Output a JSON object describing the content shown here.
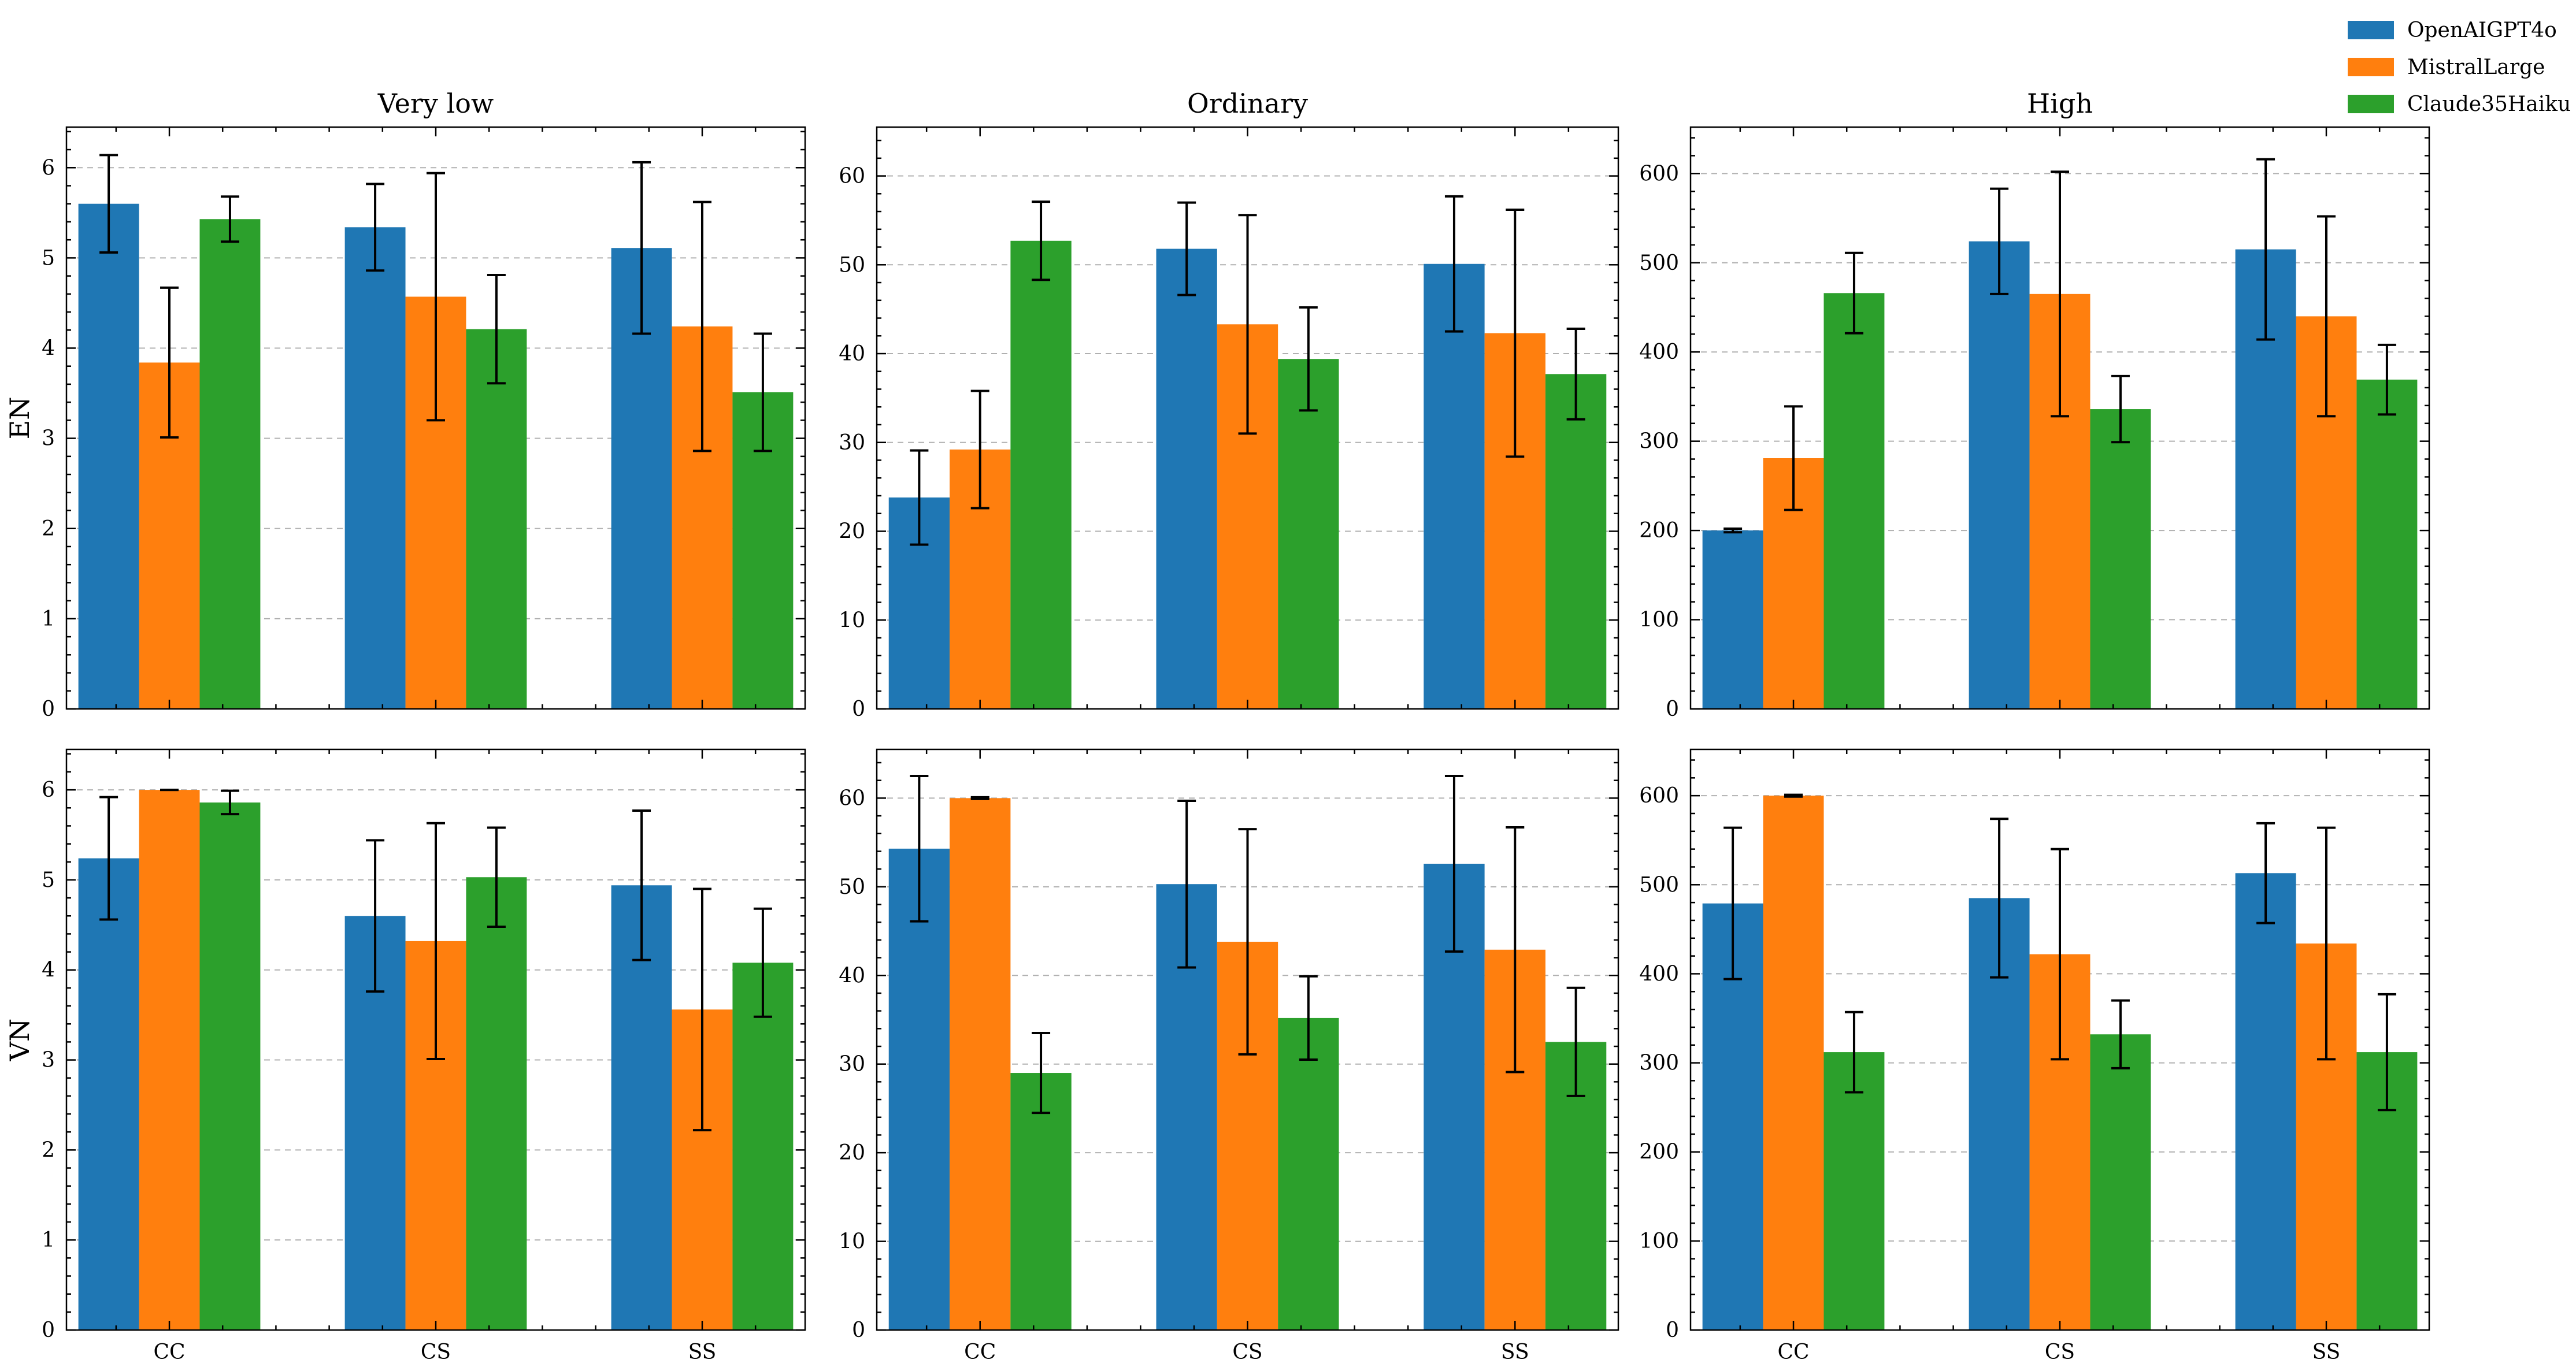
{
  "figure": {
    "column_titles": [
      "Very low",
      "Ordinary",
      "High"
    ],
    "row_labels": [
      "EN",
      "VN"
    ],
    "categories": [
      "CC",
      "CS",
      "SS"
    ],
    "legend": [
      {
        "name": "OpenAIGPT4o",
        "color": "#1f77b4"
      },
      {
        "name": "MistralLarge",
        "color": "#ff7f0e"
      },
      {
        "name": "Claude35Haiku",
        "color": "#2ca02c"
      }
    ]
  },
  "chart_data": [
    {
      "type": "bar",
      "row": "EN",
      "title": "Very low",
      "ylabel": "EN",
      "xlabel": "",
      "categories": [
        "CC",
        "CS",
        "SS"
      ],
      "ylim": [
        0,
        6.45
      ],
      "yticks": [
        0,
        1,
        2,
        3,
        4,
        5,
        6
      ],
      "grid": true,
      "error_bars": true,
      "series": [
        {
          "name": "OpenAIGPT4o",
          "values": [
            5.6,
            5.34,
            5.11
          ],
          "errors": [
            0.54,
            0.48,
            0.95
          ]
        },
        {
          "name": "MistralLarge",
          "values": [
            3.84,
            4.57,
            4.24
          ],
          "errors": [
            0.83,
            1.37,
            1.38
          ]
        },
        {
          "name": "Claude35Haiku",
          "values": [
            5.43,
            4.21,
            3.51
          ],
          "errors": [
            0.25,
            0.6,
            0.65
          ]
        }
      ]
    },
    {
      "type": "bar",
      "row": "EN",
      "title": "Ordinary",
      "ylabel": "",
      "xlabel": "",
      "categories": [
        "CC",
        "CS",
        "SS"
      ],
      "ylim": [
        0,
        65.5
      ],
      "yticks": [
        0,
        10,
        20,
        30,
        40,
        50,
        60
      ],
      "grid": true,
      "error_bars": true,
      "series": [
        {
          "name": "OpenAIGPT4o",
          "values": [
            23.8,
            51.8,
            50.1
          ],
          "errors": [
            5.3,
            5.2,
            7.6
          ]
        },
        {
          "name": "MistralLarge",
          "values": [
            29.2,
            43.3,
            42.3
          ],
          "errors": [
            6.6,
            12.3,
            13.9
          ]
        },
        {
          "name": "Claude35Haiku",
          "values": [
            52.7,
            39.4,
            37.7
          ],
          "errors": [
            4.4,
            5.8,
            5.1
          ]
        }
      ]
    },
    {
      "type": "bar",
      "row": "EN",
      "title": "High",
      "ylabel": "",
      "xlabel": "",
      "categories": [
        "CC",
        "CS",
        "SS"
      ],
      "ylim": [
        0,
        652
      ],
      "yticks": [
        0,
        100,
        200,
        300,
        400,
        500,
        600
      ],
      "grid": true,
      "error_bars": true,
      "series": [
        {
          "name": "OpenAIGPT4o",
          "values": [
            200,
            524,
            515
          ],
          "errors": [
            2,
            59,
            101
          ]
        },
        {
          "name": "MistralLarge",
          "values": [
            281,
            465,
            440
          ],
          "errors": [
            58,
            137,
            112
          ]
        },
        {
          "name": "Claude35Haiku",
          "values": [
            466,
            336,
            369
          ],
          "errors": [
            45,
            37,
            39
          ]
        }
      ]
    },
    {
      "type": "bar",
      "row": "VN",
      "title": "",
      "ylabel": "VN",
      "xlabel": "",
      "categories": [
        "CC",
        "CS",
        "SS"
      ],
      "ylim": [
        0,
        6.45
      ],
      "yticks": [
        0,
        1,
        2,
        3,
        4,
        5,
        6
      ],
      "grid": true,
      "error_bars": true,
      "series": [
        {
          "name": "OpenAIGPT4o",
          "values": [
            5.24,
            4.6,
            4.94
          ],
          "errors": [
            0.68,
            0.84,
            0.83
          ]
        },
        {
          "name": "MistralLarge",
          "values": [
            6.0,
            4.32,
            3.56
          ],
          "errors": [
            0.0,
            1.31,
            1.34
          ]
        },
        {
          "name": "Claude35Haiku",
          "values": [
            5.86,
            5.03,
            4.08
          ],
          "errors": [
            0.13,
            0.55,
            0.6
          ]
        }
      ]
    },
    {
      "type": "bar",
      "row": "VN",
      "title": "",
      "ylabel": "",
      "xlabel": "",
      "categories": [
        "CC",
        "CS",
        "SS"
      ],
      "ylim": [
        0,
        65.5
      ],
      "yticks": [
        0,
        10,
        20,
        30,
        40,
        50,
        60
      ],
      "grid": true,
      "error_bars": true,
      "series": [
        {
          "name": "OpenAIGPT4o",
          "values": [
            54.3,
            50.3,
            52.6
          ],
          "errors": [
            8.2,
            9.4,
            9.9
          ]
        },
        {
          "name": "MistralLarge",
          "values": [
            60.0,
            43.8,
            42.9
          ],
          "errors": [
            0.1,
            12.7,
            13.8
          ]
        },
        {
          "name": "Claude35Haiku",
          "values": [
            29.0,
            35.2,
            32.5
          ],
          "errors": [
            4.5,
            4.7,
            6.1
          ]
        }
      ]
    },
    {
      "type": "bar",
      "row": "VN",
      "title": "",
      "ylabel": "",
      "xlabel": "",
      "categories": [
        "CC",
        "CS",
        "SS"
      ],
      "ylim": [
        0,
        652
      ],
      "yticks": [
        0,
        100,
        200,
        300,
        400,
        500,
        600
      ],
      "grid": true,
      "error_bars": true,
      "series": [
        {
          "name": "OpenAIGPT4o",
          "values": [
            479,
            485,
            513
          ],
          "errors": [
            85,
            89,
            56
          ]
        },
        {
          "name": "MistralLarge",
          "values": [
            600,
            422,
            434
          ],
          "errors": [
            1,
            118,
            130
          ]
        },
        {
          "name": "Claude35Haiku",
          "values": [
            312,
            332,
            312
          ],
          "errors": [
            45,
            38,
            65
          ]
        }
      ]
    }
  ]
}
